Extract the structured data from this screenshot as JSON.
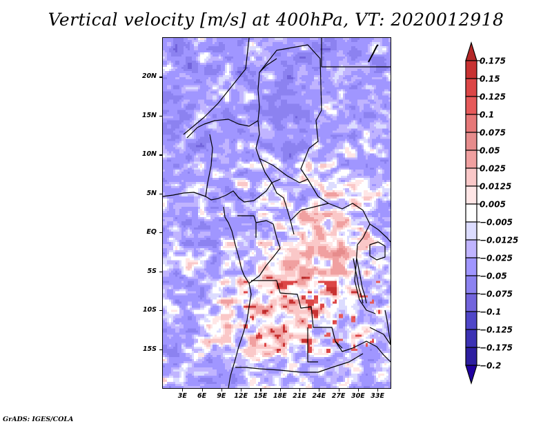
{
  "chart_data": {
    "type": "heatmap",
    "title": "Vertical velocity [m/s] at 400hPa, VT: 2020012918",
    "variable": "Vertical velocity",
    "units": "m/s",
    "level": "400hPa",
    "valid_time": "2020012918",
    "xlabel": "",
    "ylabel": "",
    "x_ticks": [
      "3E",
      "6E",
      "9E",
      "12E",
      "15E",
      "18E",
      "21E",
      "24E",
      "27E",
      "30E",
      "33E"
    ],
    "x_tick_values": [
      3,
      6,
      9,
      12,
      15,
      18,
      21,
      24,
      27,
      30,
      33
    ],
    "y_ticks": [
      "20N",
      "15N",
      "10N",
      "5N",
      "EQ",
      "5S",
      "10S",
      "15S"
    ],
    "y_tick_values": [
      20,
      15,
      10,
      5,
      0,
      -5,
      -10,
      -15
    ],
    "xlim": [
      0,
      35
    ],
    "ylim": [
      -20,
      25
    ],
    "grid": false,
    "legend": "right",
    "colorbar": {
      "labels": [
        "0.175",
        "0.15",
        "0.125",
        "0.1",
        "0.075",
        "0.05",
        "0.025",
        "0.0125",
        "0.005",
        "-0.005",
        "-0.0125",
        "-0.025",
        "-0.05",
        "-0.075",
        "-0.1",
        "-0.125",
        "-0.175",
        "-0.2"
      ],
      "levels": [
        0.175,
        0.15,
        0.125,
        0.1,
        0.075,
        0.05,
        0.025,
        0.0125,
        0.005,
        -0.005,
        -0.0125,
        -0.025,
        -0.05,
        -0.075,
        -0.1,
        -0.125,
        -0.175,
        -0.2
      ],
      "colors": [
        "#b42828",
        "#c83232",
        "#dc4646",
        "#e65a5a",
        "#e67878",
        "#e68c8c",
        "#f0a0a0",
        "#fac8c8",
        "#ffe6e6",
        "#ffffff",
        "#dcdcff",
        "#c0b4ff",
        "#a096ff",
        "#8c82f0",
        "#7264dc",
        "#4f46c8",
        "#3c32b4",
        "#2d1ea0",
        "#2000a0"
      ],
      "extend": "both"
    },
    "description": "Contour-filled field of 400hPa vertical velocity over west/central Africa; mostly weak negative (blue) values over the north and Atlantic, positive (red) values over Congo basin, Angola, Zambia and East African lakes region with strong positive cells near 5-15S."
  },
  "footer": "GrADS: IGES/COLA"
}
